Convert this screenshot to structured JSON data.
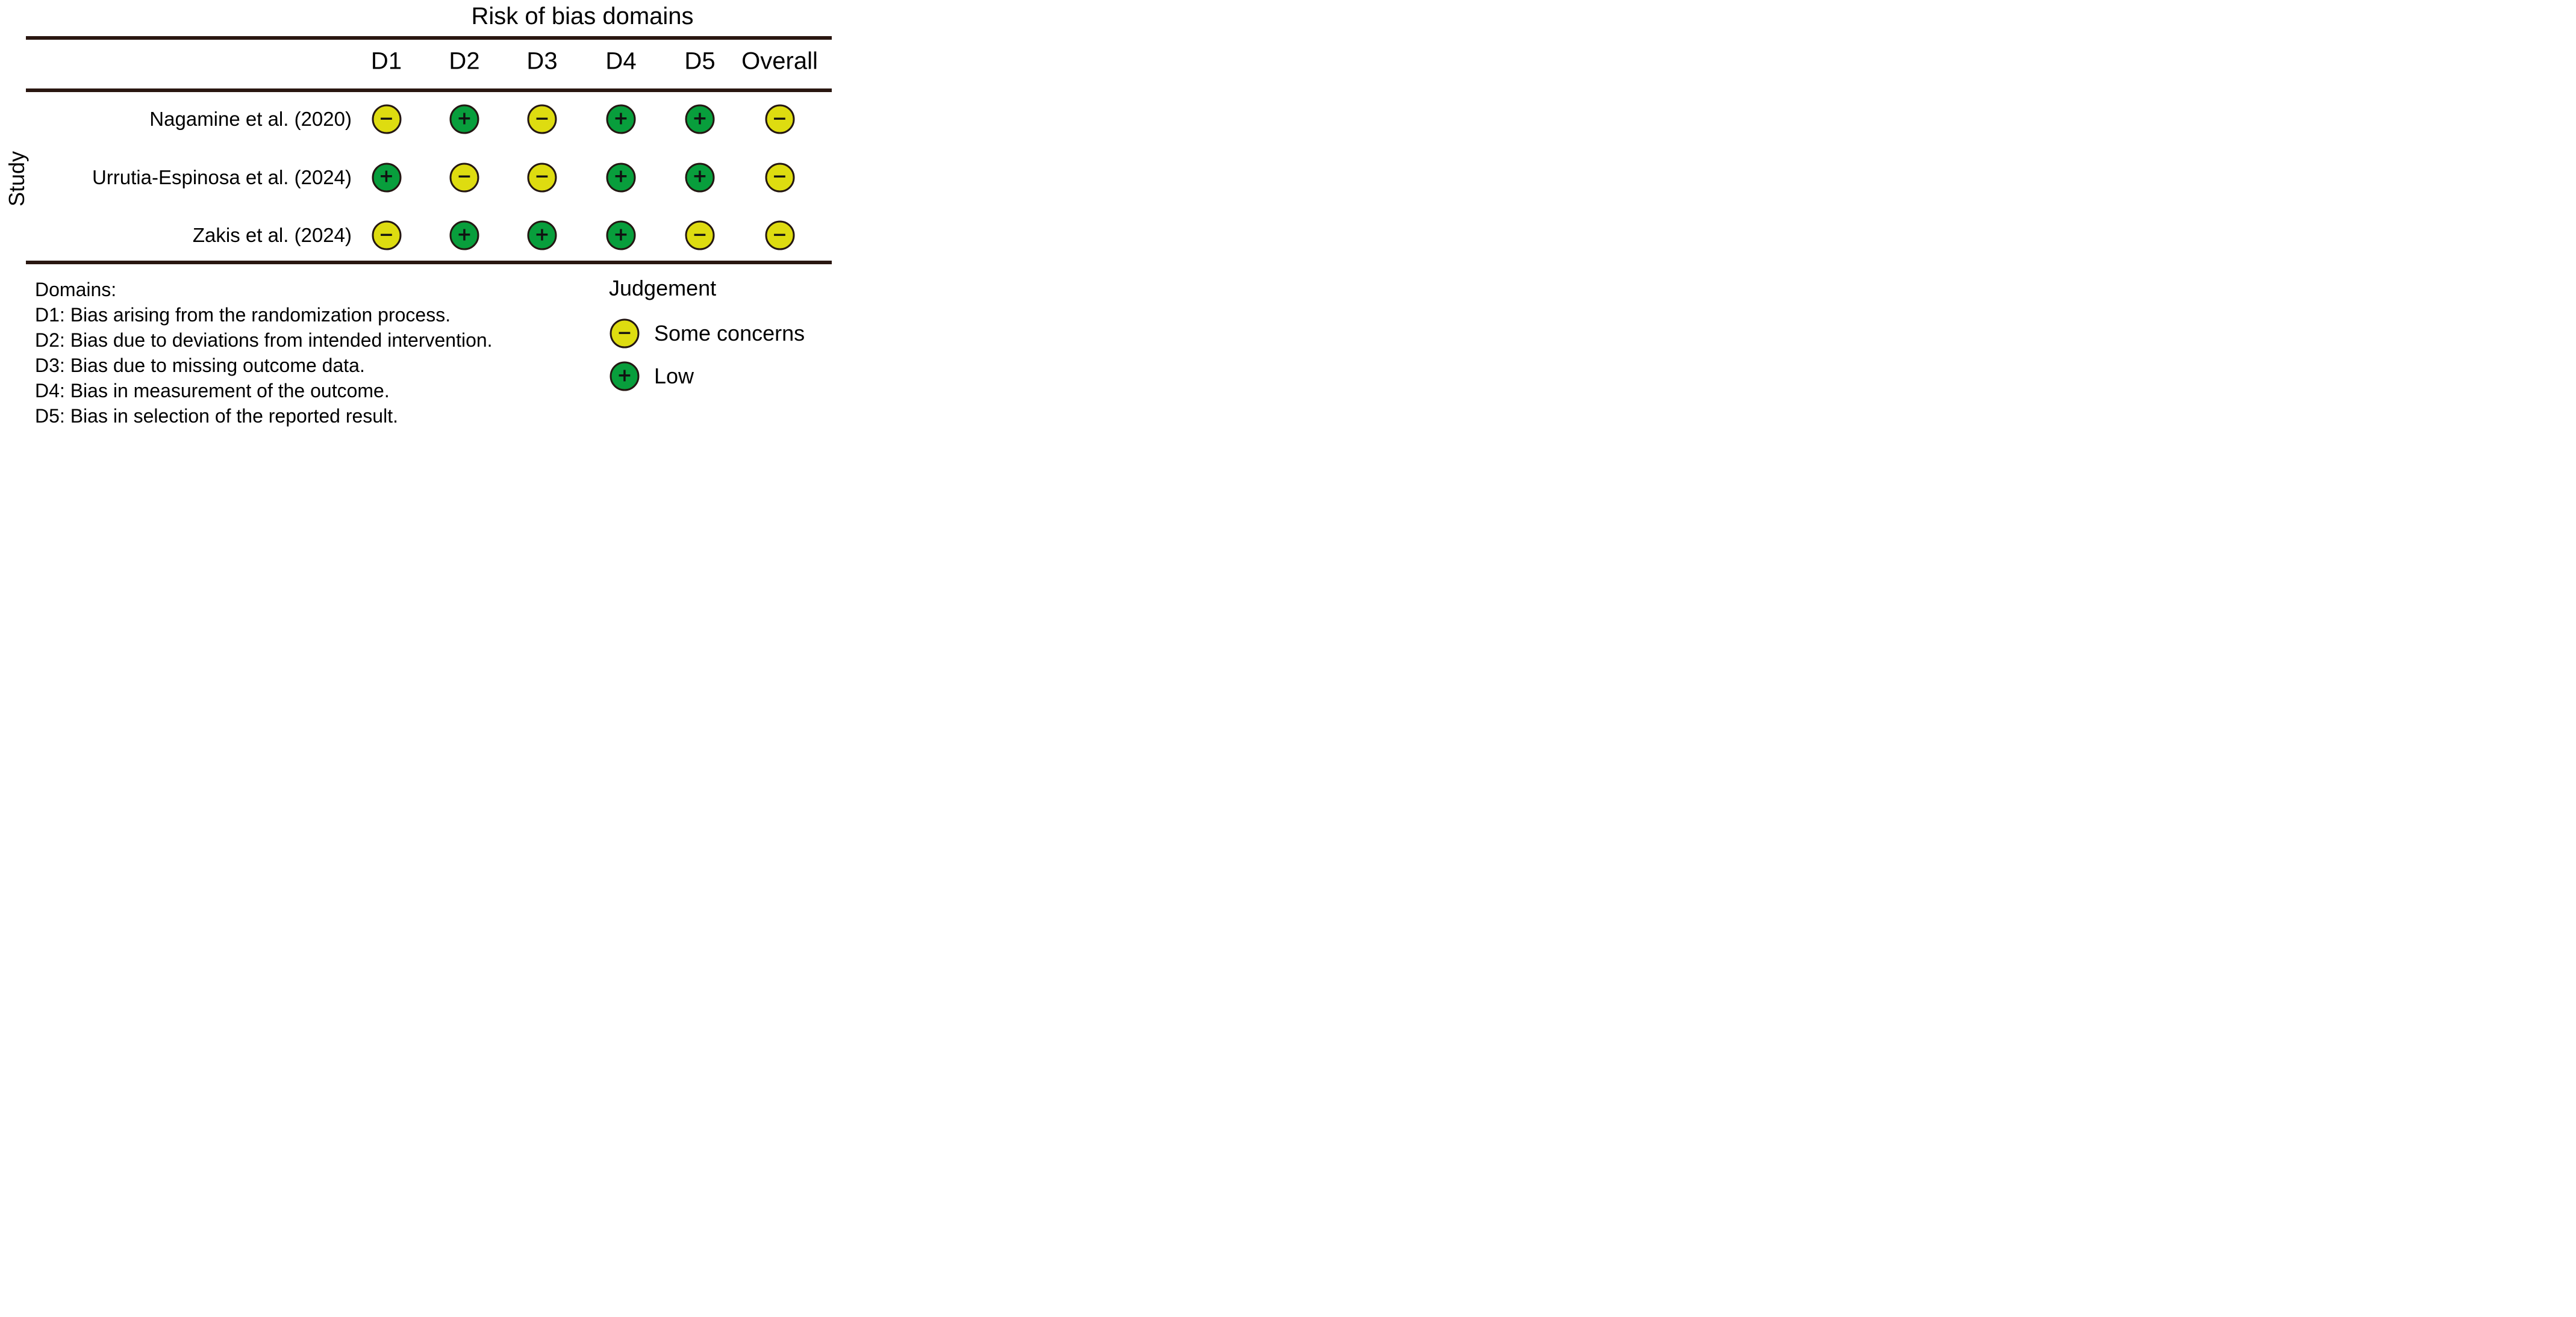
{
  "figure": {
    "title": "Risk of bias domains",
    "row_axis_label": "Study"
  },
  "table": {
    "columns": [
      "D1",
      "D2",
      "D3",
      "D4",
      "D5",
      "Overall"
    ],
    "rows": [
      {
        "study": "Nagamine et al. (2020)",
        "judgements": [
          "some_concerns",
          "low",
          "some_concerns",
          "low",
          "low",
          "some_concerns"
        ]
      },
      {
        "study": "Urrutia-Espinosa et al. (2024)",
        "judgements": [
          "low",
          "some_concerns",
          "some_concerns",
          "low",
          "low",
          "some_concerns"
        ]
      },
      {
        "study": "Zakis et al. (2024)",
        "judgements": [
          "some_concerns",
          "low",
          "low",
          "low",
          "some_concerns",
          "some_concerns"
        ]
      }
    ]
  },
  "judgements": {
    "some_concerns": {
      "label": "Some concerns",
      "symbol": "−",
      "color": "#dedc10"
    },
    "low": {
      "label": "Low",
      "symbol": "+",
      "color": "#089e3c"
    }
  },
  "legend": {
    "title": "Judgement",
    "order": [
      "some_concerns",
      "low"
    ]
  },
  "footnotes": {
    "heading": "Domains:",
    "items": [
      "D1: Bias arising from the randomization process.",
      "D2: Bias due to deviations from intended intervention.",
      "D3: Bias due to missing outcome data.",
      "D4: Bias in measurement of the outcome.",
      "D5: Bias in selection of the reported result."
    ]
  },
  "colors": {
    "rule": "#2a1711",
    "circle_outline": "#241712",
    "symbol": "#111111",
    "some_concerns": "#dedc10",
    "low": "#089e3c"
  },
  "chart_data": {
    "type": "table",
    "title": "Risk of bias domains",
    "row_axis_label": "Study",
    "columns": [
      "D1",
      "D2",
      "D3",
      "D4",
      "D5",
      "Overall"
    ],
    "rows": [
      {
        "study": "Nagamine et al. (2020)",
        "values": [
          "Some concerns",
          "Low",
          "Some concerns",
          "Low",
          "Low",
          "Some concerns"
        ]
      },
      {
        "study": "Urrutia-Espinosa et al. (2024)",
        "values": [
          "Low",
          "Some concerns",
          "Some concerns",
          "Low",
          "Low",
          "Some concerns"
        ]
      },
      {
        "study": "Zakis et al. (2024)",
        "values": [
          "Some concerns",
          "Low",
          "Low",
          "Low",
          "Some concerns",
          "Some concerns"
        ]
      }
    ],
    "legend": [
      {
        "judgement": "Some concerns",
        "marker": "yellow circle with minus"
      },
      {
        "judgement": "Low",
        "marker": "green circle with plus"
      }
    ],
    "footnotes": [
      "D1: Bias arising from the randomization process.",
      "D2: Bias due to deviations from intended intervention.",
      "D3: Bias due to missing outcome data.",
      "D4: Bias in measurement of the outcome.",
      "D5: Bias in selection of the reported result."
    ]
  }
}
